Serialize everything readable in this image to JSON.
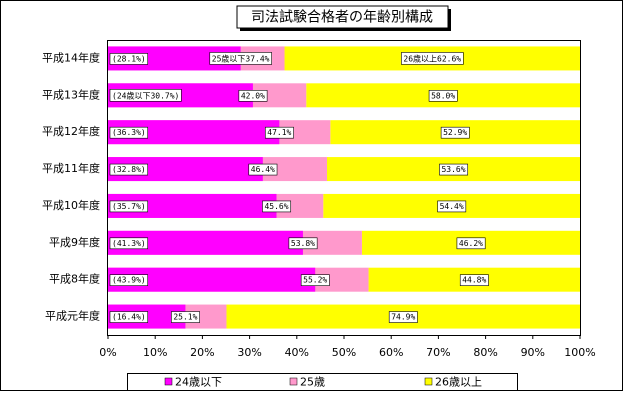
{
  "chart_data": {
    "type": "bar",
    "orientation": "horizontal",
    "title": "司法試験合格者の年齢別構成",
    "categories": [
      "平成14年度",
      "平成13年度",
      "平成12年度",
      "平成11年度",
      "平成10年度",
      "平成9年度",
      "平成8年度",
      "平成元年度"
    ],
    "series": [
      {
        "name": "24歳以下",
        "color": "#ff00ff",
        "values": [
          28.1,
          30.7,
          36.3,
          32.8,
          35.7,
          41.3,
          43.9,
          16.4
        ],
        "value_labels": [
          "(28.1%)",
          "(24歳以下30.7%)",
          "(36.3%)",
          "(32.8%)",
          "(35.7%)",
          "(41.3%)",
          "(43.9%)",
          "(16.4%)"
        ]
      },
      {
        "name": "25歳",
        "color": "#ff99cc",
        "values": [
          37.4,
          42,
          47.1,
          46.4,
          45.6,
          53.8,
          55.2,
          25.1
        ],
        "value_labels": [
          "25歳以下37.4%",
          "42.0%",
          "47.1%",
          "46.4%",
          "45.6%",
          "53.8%",
          "55.2%",
          "25.1%"
        ]
      },
      {
        "name": "26歳以上",
        "color": "#ffff00",
        "values": [
          62.6,
          58,
          52.9,
          53.6,
          54.4,
          46.2,
          44.8,
          74.9
        ],
        "value_labels": [
          "26歳以上62.6%",
          "58.0%",
          "52.9%",
          "53.6%",
          "54.4%",
          "46.2%",
          "44.8%",
          "74.9%"
        ]
      }
    ],
    "xlim": [
      0,
      100
    ],
    "xticks": [
      {
        "value": 0,
        "label": "0%"
      },
      {
        "value": 10,
        "label": "10%"
      },
      {
        "value": 20,
        "label": "20%"
      },
      {
        "value": 30,
        "label": "30%"
      },
      {
        "value": 40,
        "label": "40%"
      },
      {
        "value": 50,
        "label": "50%"
      },
      {
        "value": 60,
        "label": "60%"
      },
      {
        "value": 70,
        "label": "70%"
      },
      {
        "value": 80,
        "label": "80%"
      },
      {
        "value": 90,
        "label": "90%"
      },
      {
        "value": 100,
        "label": "100%"
      }
    ],
    "legend": "bottom"
  }
}
